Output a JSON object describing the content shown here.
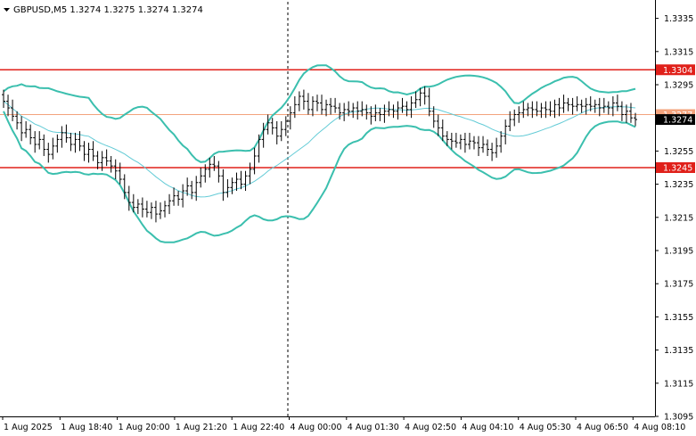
{
  "header": {
    "label": "GBPUSD,M5  1.3274 1.3275 1.3274 1.3274",
    "arrow_icon": "triangle-down-icon"
  },
  "chart_data": {
    "type": "candlestick",
    "symbol": "GBPUSD",
    "timeframe": "M5",
    "ylim": [
      1.3095,
      1.3345
    ],
    "grid": false,
    "y_ticks": [
      "1.3335",
      "1.3315",
      "1.3295",
      "1.3275",
      "1.3255",
      "1.3235",
      "1.3215",
      "1.3195",
      "1.3175",
      "1.3155",
      "1.3135",
      "1.3115",
      "1.3095"
    ],
    "x_ticks": [
      "1 Aug 2025",
      "1 Aug 18:40",
      "1 Aug 20:00",
      "1 Aug 21:20",
      "1 Aug 22:40",
      "4 Aug 00:00",
      "4 Aug 01:30",
      "4 Aug 02:50",
      "4 Aug 04:10",
      "4 Aug 05:30",
      "4 Aug 06:50",
      "4 Aug 08:10"
    ],
    "period_separator_label": "4 Aug 00:00",
    "levels": [
      {
        "value": 1.3304,
        "label": "1.3304",
        "color": "#e0201a"
      },
      {
        "value": 1.3245,
        "label": "1.3245",
        "color": "#e0201a"
      },
      {
        "value": 1.3277,
        "label": "1.3277",
        "color": "#f3a37d"
      }
    ],
    "current_price": {
      "value": 1.3274,
      "label": "1.3274"
    },
    "colors": {
      "bars": "#000000",
      "bands": "#3bbfae",
      "ma": "#63cbd6",
      "level": "#e0201a"
    },
    "close": [
      1.3285,
      1.3281,
      1.3276,
      1.3272,
      1.3266,
      1.3268,
      1.3263,
      1.3259,
      1.3262,
      1.3256,
      1.3253,
      1.3258,
      1.3262,
      1.3266,
      1.3263,
      1.3259,
      1.3262,
      1.3258,
      1.3253,
      1.3256,
      1.3252,
      1.3248,
      1.3251,
      1.3249,
      1.3246,
      1.3243,
      1.3238,
      1.323,
      1.3224,
      1.3221,
      1.3223,
      1.322,
      1.3218,
      1.3221,
      1.3217,
      1.3219,
      1.3222,
      1.3225,
      1.3228,
      1.3226,
      1.3231,
      1.3234,
      1.323,
      1.3236,
      1.324,
      1.3244,
      1.3247,
      1.3246,
      1.324,
      1.323,
      1.3233,
      1.3236,
      1.3238,
      1.3235,
      1.324,
      1.3244,
      1.3252,
      1.3262,
      1.3268,
      1.3272,
      1.3269,
      1.3264,
      1.3268,
      1.3273,
      1.3278,
      1.3283,
      1.3288,
      1.3285,
      1.328,
      1.3285,
      1.3284,
      1.328,
      1.3283,
      1.3282,
      1.3281,
      1.3278,
      1.328,
      1.3279,
      1.3281,
      1.3279,
      1.328,
      1.3278,
      1.3276,
      1.3278,
      1.3277,
      1.3279,
      1.328,
      1.3279,
      1.3281,
      1.3282,
      1.328,
      1.3284,
      1.3286,
      1.329,
      1.3288,
      1.3279,
      1.3273,
      1.3269,
      1.3264,
      1.3262,
      1.3261,
      1.326,
      1.3262,
      1.3259,
      1.3261,
      1.326,
      1.3257,
      1.3259,
      1.3256,
      1.3254,
      1.3258,
      1.3264,
      1.327,
      1.3274,
      1.3277,
      1.3278,
      1.328,
      1.3281,
      1.328,
      1.3279,
      1.3281,
      1.328,
      1.3279,
      1.3283,
      1.3281,
      1.3284,
      1.3283,
      1.3282,
      1.3283,
      1.3282,
      1.3283,
      1.3282,
      1.3283,
      1.3281,
      1.3282,
      1.3281,
      1.3284,
      1.3282,
      1.3277,
      1.3279,
      1.3275,
      1.3274
    ]
  }
}
